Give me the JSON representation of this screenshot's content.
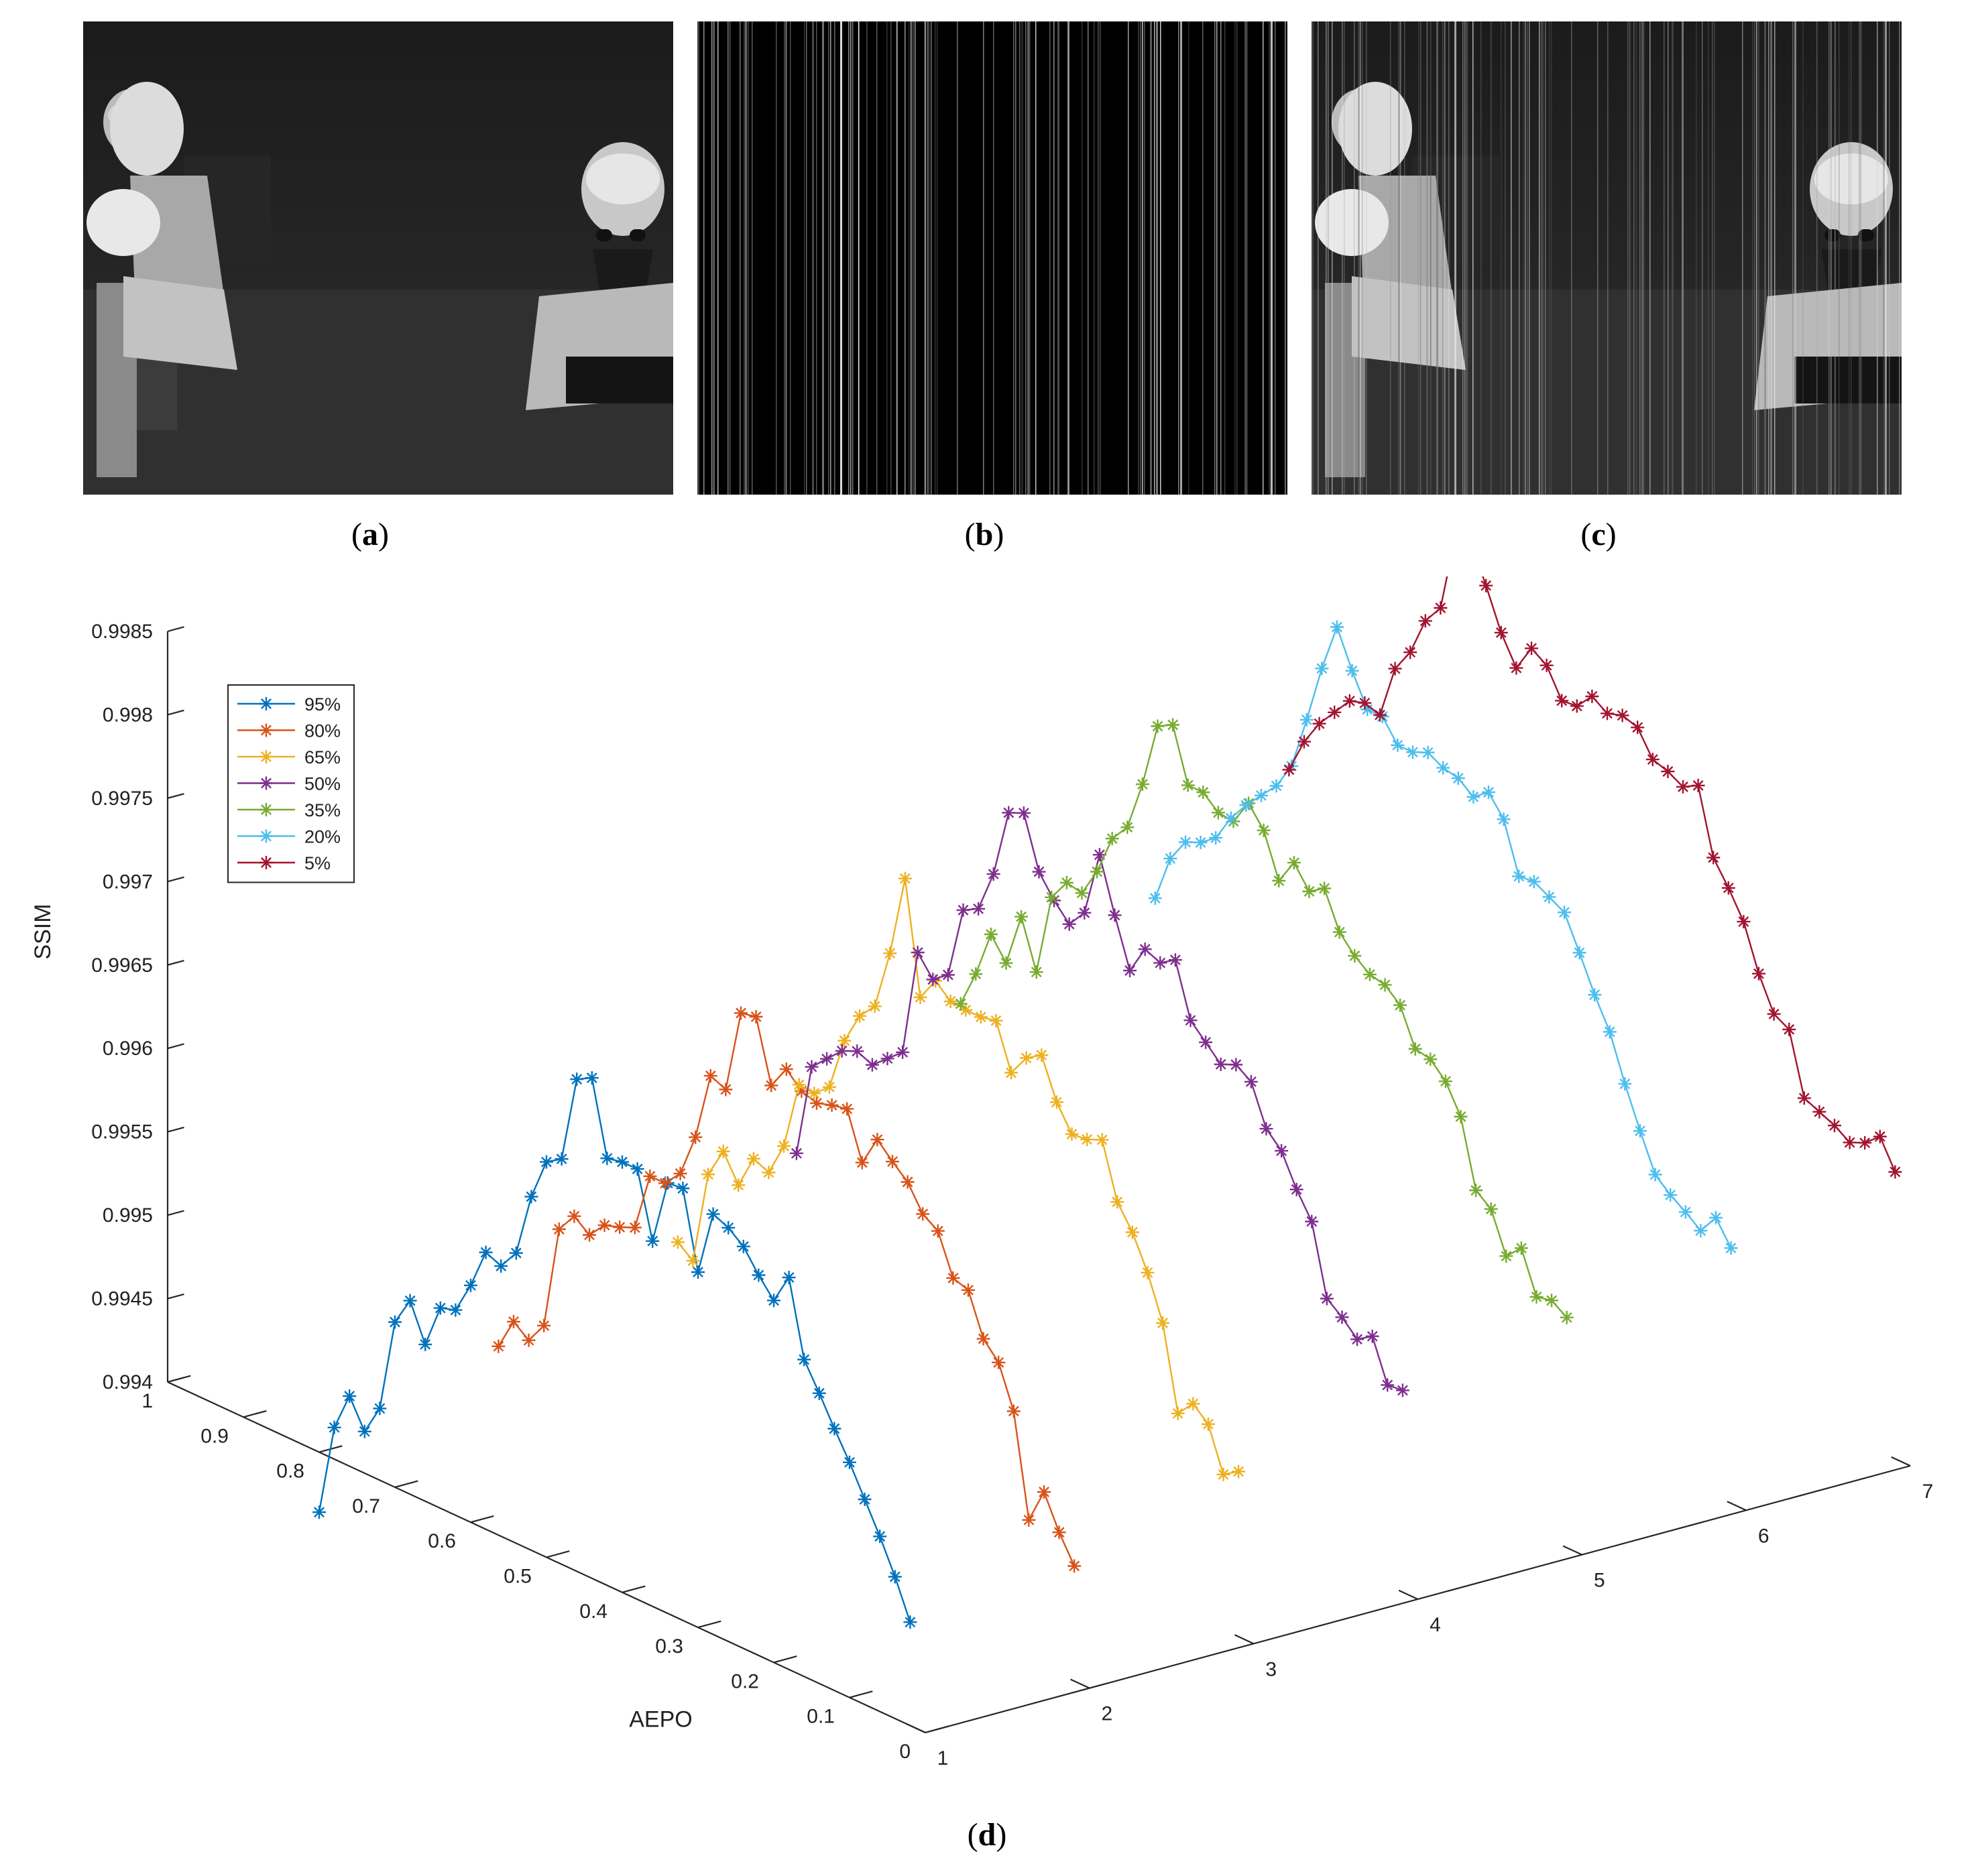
{
  "captions": {
    "a": "a",
    "b": "b",
    "c": "c",
    "d": "d"
  },
  "images": {
    "a": "thermal infrared scene: two people at lab desks",
    "b": "black frame with vertical white stripe noise",
    "c": "thermal infrared scene with vertical stripe noise"
  },
  "colors": {
    "95%": "#0072bd",
    "80%": "#d95319",
    "65%": "#edb120",
    "50%": "#7e2f8e",
    "35%": "#77ac30",
    "20%": "#4dbeee",
    "5%": "#a2142f"
  },
  "chart_data": {
    "type": "line",
    "projection": "3d",
    "xlabel": "",
    "ylabel": "AEPO",
    "zlabel": "SSIM",
    "xlim": [
      1,
      7
    ],
    "ylim": [
      0,
      1
    ],
    "zlim": [
      0.994,
      0.9985
    ],
    "x_ticks": [
      "1",
      "2",
      "3",
      "4",
      "5",
      "6",
      "7"
    ],
    "y_ticks": [
      "0",
      "0.1",
      "0.2",
      "0.3",
      "0.4",
      "0.5",
      "0.6",
      "0.7",
      "0.8",
      "0.9",
      "1"
    ],
    "z_ticks": [
      "0.994",
      "0.9945",
      "0.995",
      "0.9955",
      "0.996",
      "0.9965",
      "0.997",
      "0.9975",
      "0.998",
      "0.9985"
    ],
    "legend_position": "top-left",
    "series": [
      {
        "name": "95%",
        "color": "#0072bd",
        "x": 1,
        "y_start": 0.02,
        "y_step": 0.02,
        "z": [
          0.99462,
          0.99485,
          0.99505,
          0.99523,
          0.99541,
          0.99557,
          0.99574,
          0.9959,
          0.99635,
          0.99617,
          0.99628,
          0.99641,
          0.99648,
          0.99652,
          0.99613,
          0.99659,
          0.99658,
          0.99619,
          0.99658,
          0.99658,
          0.99656,
          0.997,
          0.99695,
          0.99643,
          0.99637,
          0.99612,
          0.99574,
          0.99562,
          0.99566,
          0.99542,
          0.99523,
          0.9952,
          0.99494,
          0.99516,
          0.99499,
          0.99443,
          0.99425,
          0.99442,
          0.99419,
          0.99364
        ]
      },
      {
        "name": "80%",
        "color": "#d95319",
        "x": 2,
        "y_start": 0.02,
        "y_step": 0.02,
        "z": [
          0.99469,
          0.99485,
          0.99505,
          0.99484,
          0.99545,
          0.9957,
          0.9958,
          0.99605,
          0.99608,
          0.99632,
          0.99638,
          0.99653,
          0.99661,
          0.9967,
          0.99652,
          0.9968,
          0.99678,
          0.99675,
          0.99678,
          0.99687,
          0.99673,
          0.9971,
          0.99708,
          0.99658,
          0.99662,
          0.99621,
          0.99595,
          0.99585,
          0.99585,
          0.9955,
          0.99546,
          0.99543,
          0.99533,
          0.9954,
          0.99528,
          0.99466,
          0.99453,
          0.9946,
          0.99441
        ]
      },
      {
        "name": "65%",
        "color": "#edb120",
        "x": 3,
        "y_start": 0.02,
        "y_step": 0.02,
        "z": [
          0.99499,
          0.99493,
          0.99519,
          0.99527,
          0.99517,
          0.99567,
          0.99593,
          0.99613,
          0.99627,
          0.9966,
          0.99656,
          0.99655,
          0.9967,
          0.99694,
          0.99688,
          0.99675,
          0.99702,
          0.997,
          0.997,
          0.99701,
          0.99709,
          0.99695,
          0.99762,
          0.99713,
          0.99677,
          0.99667,
          0.99648,
          0.99616,
          0.99608,
          0.99609,
          0.99568,
          0.99548,
          0.99552,
          0.99532,
          0.99548,
          0.9953,
          0.99474,
          0.99481
        ]
      },
      {
        "name": "50%",
        "color": "#7e2f8e",
        "x": 4,
        "y_start": 0.02,
        "y_step": 0.02,
        "z": [
          0.99521,
          0.9952,
          0.99545,
          0.99539,
          0.99548,
          0.99555,
          0.99597,
          0.99612,
          0.99631,
          0.9964,
          0.99664,
          0.9967,
          0.99666,
          0.99675,
          0.99684,
          0.99716,
          0.9971,
          0.99714,
          0.99697,
          0.99726,
          0.99758,
          0.99719,
          0.99708,
          0.99718,
          0.99731,
          0.99762,
          0.99758,
          0.99717,
          0.99692,
          0.99687,
          0.99644,
          0.99637,
          0.99649,
          0.99585,
          0.99577,
          0.99569,
          0.99573,
          0.99569,
          0.9956,
          0.99551,
          0.99495
        ]
      },
      {
        "name": "35%",
        "color": "#77ac30",
        "x": 5,
        "y_start": 0.02,
        "y_step": 0.02,
        "z": [
          0.99538,
          0.99544,
          0.99542,
          0.99567,
          0.99558,
          0.99582,
          0.99589,
          0.99629,
          0.99646,
          0.99655,
          0.99657,
          0.99679,
          0.99687,
          0.99689,
          0.99696,
          0.99706,
          0.99728,
          0.99722,
          0.99735,
          0.9972,
          0.99746,
          0.99758,
          0.99743,
          0.99744,
          0.99752,
          0.99752,
          0.99784,
          0.99779,
          0.9974,
          0.9971,
          0.99699,
          0.99675,
          0.99658,
          0.9966,
          0.99647,
          0.99598,
          0.99627,
          0.99595,
          0.99608,
          0.9958,
          0.99558
        ]
      },
      {
        "name": "20%",
        "color": "#4dbeee",
        "x": 6,
        "y_start": 0.02,
        "y_step": 0.02,
        "z": [
          0.99553,
          0.99567,
          0.99555,
          0.99562,
          0.99568,
          0.99576,
          0.99598,
          0.99622,
          0.99649,
          0.99667,
          0.99688,
          0.99708,
          0.99713,
          0.99718,
          0.99717,
          0.99747,
          0.99759,
          0.99752,
          0.99759,
          0.99761,
          0.99766,
          0.99762,
          0.99762,
          0.99775,
          0.99775,
          0.99794,
          0.99816,
          0.99787,
          0.99752,
          0.9972,
          0.99704,
          0.99694,
          0.99684,
          0.99672,
          0.99656,
          0.99649,
          0.99645,
          0.99631,
          0.99603
        ]
      },
      {
        "name": "5%",
        "color": "#a2142f",
        "x": 7,
        "y_start": 0.02,
        "y_step": 0.02,
        "z": [
          0.99572,
          0.99589,
          0.99581,
          0.99577,
          0.99583,
          0.99587,
          0.99591,
          0.99628,
          0.99633,
          0.99653,
          0.9968,
          0.99696,
          0.9971,
          0.99749,
          0.99744,
          0.99749,
          0.99752,
          0.99767,
          0.9977,
          0.99767,
          0.99773,
          0.99763,
          0.99762,
          0.99779,
          0.99785,
          0.99769,
          0.99786,
          0.9981,
          0.99832,
          0.99832,
          0.99784,
          0.99772,
          0.99749,
          0.99735,
          0.99703,
          0.99706,
          0.99703,
          0.99692,
          0.99681,
          0.99666,
          0.99645
        ]
      }
    ]
  }
}
